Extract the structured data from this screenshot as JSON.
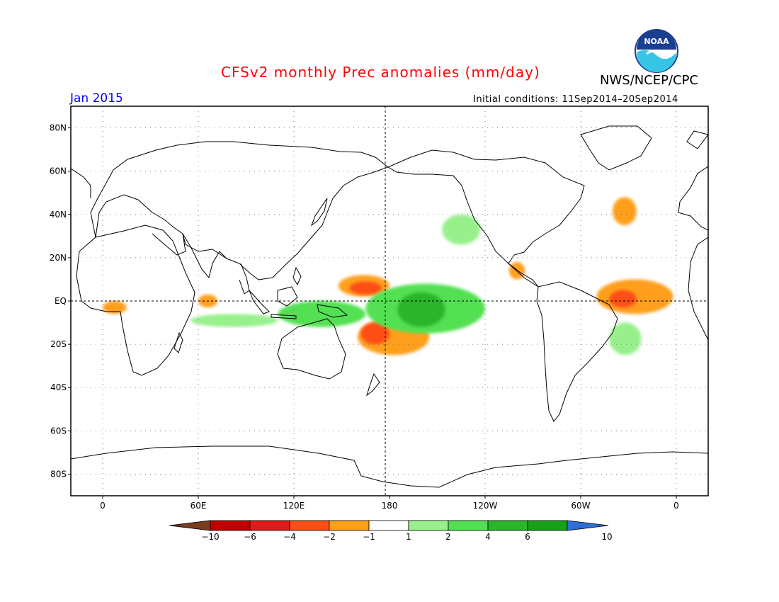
{
  "header": {
    "title": "CFSv2 monthly Prec anomalies (mm/day)",
    "organization": "NWS/NCEP/CPC",
    "logo_text": "NOAA",
    "target_month": "Jan 2015",
    "initial_conditions_label": "Initial conditions:",
    "initial_conditions_value": "11Sep2014–20Sep2014"
  },
  "map": {
    "projection": "cylindrical equidistant, Pacific-centered",
    "lon_range": [
      -20,
      380
    ],
    "lat_range": [
      -90,
      90
    ],
    "gridlines": "dotted",
    "lat_labels": [
      "80N",
      "60N",
      "40N",
      "20N",
      "EQ",
      "20S",
      "40S",
      "60S",
      "80S"
    ],
    "lat_values": [
      80,
      60,
      40,
      20,
      0,
      -20,
      -40,
      -60,
      -80
    ],
    "lon_labels": [
      "0",
      "60E",
      "120E",
      "180",
      "120W",
      "60W",
      "0"
    ],
    "lon_values": [
      0,
      60,
      120,
      180,
      240,
      300,
      360
    ]
  },
  "colorbar": {
    "tick_labels": [
      "-10",
      "-6",
      "-4",
      "-2",
      "-1",
      "1",
      "2",
      "4",
      "6",
      "10"
    ],
    "colors": [
      "#7a3b1f",
      "#c00000",
      "#e01b1b",
      "#ff4d17",
      "#ff9f1a",
      "#ffffff",
      "#98f08c",
      "#52e052",
      "#2bb52b",
      "#18a018",
      "#2d6ed8"
    ]
  },
  "anomaly_regions": [
    {
      "label": "W Pacific N of equator dry",
      "color": "#ff9f1a",
      "lon": [
        148,
        180
      ],
      "lat": [
        2,
        12
      ]
    },
    {
      "label": "W Pacific core dry",
      "color": "#ff4d17",
      "lon": [
        155,
        175
      ],
      "lat": [
        3,
        9
      ]
    },
    {
      "label": "SPCZ dry",
      "color": "#ff9f1a",
      "lon": [
        160,
        205
      ],
      "lat": [
        -25,
        -8
      ]
    },
    {
      "label": "SPCZ core dry",
      "color": "#ff4d17",
      "lon": [
        162,
        180
      ],
      "lat": [
        -20,
        -10
      ]
    },
    {
      "label": "Central Pacific wet",
      "color": "#52e052",
      "lon": [
        165,
        240
      ],
      "lat": [
        -15,
        8
      ]
    },
    {
      "label": "Central Pacific core wet",
      "color": "#2bb52b",
      "lon": [
        185,
        215
      ],
      "lat": [
        -12,
        4
      ]
    },
    {
      "label": "Maritime Continent wet",
      "color": "#52e052",
      "lon": [
        110,
        165
      ],
      "lat": [
        -12,
        0
      ]
    },
    {
      "label": "Indian Ocean wet",
      "color": "#98f08c",
      "lon": [
        55,
        110
      ],
      "lat": [
        -12,
        -6
      ]
    },
    {
      "label": "NE Pacific wet",
      "color": "#98f08c",
      "lon": [
        213,
        237
      ],
      "lat": [
        26,
        40
      ]
    },
    {
      "label": "Equatorial Atlantic dry",
      "color": "#ff9f1a",
      "lon": [
        310,
        358
      ],
      "lat": [
        -6,
        10
      ]
    },
    {
      "label": "NE Brazil core dry",
      "color": "#ff4d17",
      "lon": [
        318,
        335
      ],
      "lat": [
        -3,
        5
      ]
    },
    {
      "label": "Gulf of Guinea dry",
      "color": "#ff9f1a",
      "lon": [
        0,
        15
      ],
      "lat": [
        -6,
        0
      ]
    },
    {
      "label": "West Indian Ocean dry",
      "color": "#ff9f1a",
      "lon": [
        60,
        72
      ],
      "lat": [
        -3,
        3
      ]
    },
    {
      "label": "North Atlantic dry",
      "color": "#ff9f1a",
      "lon": [
        320,
        335
      ],
      "lat": [
        35,
        48
      ]
    },
    {
      "label": "South Atlantic wet",
      "color": "#98f08c",
      "lon": [
        318,
        338
      ],
      "lat": [
        -25,
        -10
      ]
    },
    {
      "label": "East Pacific dry",
      "color": "#ff9f1a",
      "lon": [
        255,
        265
      ],
      "lat": [
        10,
        18
      ]
    }
  ]
}
